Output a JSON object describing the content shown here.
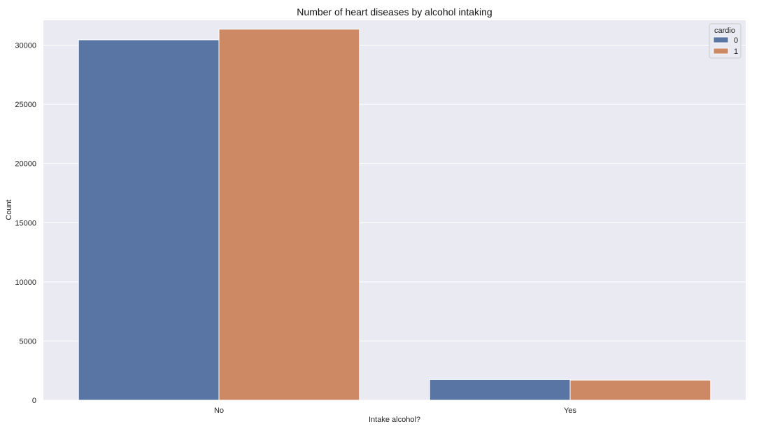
{
  "chart_data": {
    "type": "bar",
    "title": "Number of heart diseases by alcohol intaking",
    "xlabel": "Intake alcohol?",
    "ylabel": "Count",
    "categories": [
      "No",
      "Yes"
    ],
    "series": [
      {
        "name": "0",
        "values": [
          30450,
          1750
        ],
        "color": "#5975a4"
      },
      {
        "name": "1",
        "values": [
          31350,
          1700
        ],
        "color": "#cc8963"
      }
    ],
    "ylim": [
      0,
      32100
    ],
    "yticks": [
      0,
      5000,
      10000,
      15000,
      20000,
      25000,
      30000
    ],
    "legend": {
      "title": "cardio",
      "placement": "top-right"
    },
    "grid": true,
    "background": "#eaeaf2"
  }
}
